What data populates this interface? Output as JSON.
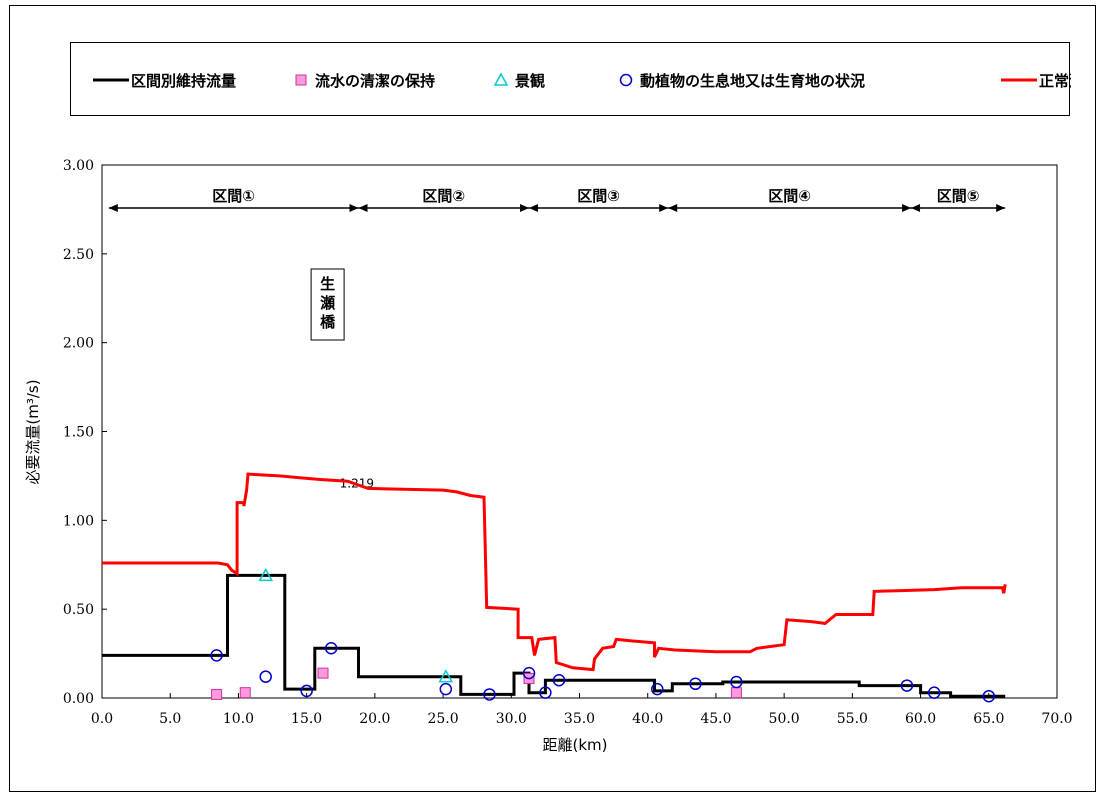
{
  "chart_data": {
    "type": "line",
    "xlabel": "距離(km)",
    "ylabel": "必要流量(m³/s)",
    "xlim": [
      0,
      70
    ],
    "ylim": [
      0,
      3.0
    ],
    "x_ticks": [
      "0.0",
      "5.0",
      "10.0",
      "15.0",
      "20.0",
      "25.0",
      "30.0",
      "35.0",
      "40.0",
      "45.0",
      "50.0",
      "55.0",
      "60.0",
      "65.0",
      "70.0"
    ],
    "y_ticks": [
      "0.00",
      "0.50",
      "1.00",
      "1.50",
      "2.00",
      "2.50",
      "3.00"
    ],
    "legend": [
      {
        "name": "区間別維持流量",
        "symbol": "line",
        "color": "#000000"
      },
      {
        "name": "流水の清潔の保持",
        "symbol": "square",
        "color": "#ff66cc"
      },
      {
        "name": "景観",
        "symbol": "triangle",
        "color": "#00cccc"
      },
      {
        "name": "動植物の生息地又は生育地の状況",
        "symbol": "circle",
        "color": "#0000cc"
      },
      {
        "name": "正常流量",
        "symbol": "line",
        "color": "#ff0000"
      }
    ],
    "sections": [
      {
        "label": "区間①",
        "from": 0.5,
        "to": 18.8
      },
      {
        "label": "区間②",
        "from": 18.8,
        "to": 31.3
      },
      {
        "label": "区間③",
        "from": 31.3,
        "to": 41.5
      },
      {
        "label": "区間④",
        "from": 41.5,
        "to": 59.3
      },
      {
        "label": "区間⑤",
        "from": 59.3,
        "to": 66.2
      }
    ],
    "annotation_box": {
      "text": [
        "生",
        "瀬",
        "橋"
      ],
      "x": 16.5
    },
    "annotation_value": {
      "text": "1.219",
      "x": 17.2,
      "y": 1.219
    },
    "series": [
      {
        "name": "区間別維持流量",
        "color": "#000000",
        "step": true,
        "points": [
          [
            0,
            0.24
          ],
          [
            9.2,
            0.24
          ],
          [
            9.2,
            0.69
          ],
          [
            13.4,
            0.69
          ],
          [
            13.4,
            0.05
          ],
          [
            15.6,
            0.05
          ],
          [
            15.6,
            0.28
          ],
          [
            18.8,
            0.28
          ],
          [
            18.8,
            0.12
          ],
          [
            26.3,
            0.12
          ],
          [
            26.3,
            0.02
          ],
          [
            30.2,
            0.02
          ],
          [
            30.2,
            0.14
          ],
          [
            31.3,
            0.14
          ],
          [
            31.3,
            0.03
          ],
          [
            32.5,
            0.03
          ],
          [
            32.5,
            0.1
          ],
          [
            40.5,
            0.1
          ],
          [
            40.5,
            0.04
          ],
          [
            41.8,
            0.04
          ],
          [
            41.8,
            0.08
          ],
          [
            45.5,
            0.08
          ],
          [
            45.5,
            0.09
          ],
          [
            55.5,
            0.09
          ],
          [
            55.5,
            0.07
          ],
          [
            60.0,
            0.07
          ],
          [
            60.0,
            0.03
          ],
          [
            62.2,
            0.03
          ],
          [
            62.2,
            0.01
          ],
          [
            66.2,
            0.01
          ]
        ]
      },
      {
        "name": "正常流量",
        "color": "#ff0000",
        "step": false,
        "points": [
          [
            0,
            0.76
          ],
          [
            8.5,
            0.76
          ],
          [
            9.2,
            0.75
          ],
          [
            9.5,
            0.72
          ],
          [
            9.9,
            0.7
          ],
          [
            9.9,
            1.1
          ],
          [
            10.4,
            1.1
          ],
          [
            10.4,
            1.08
          ],
          [
            10.6,
            1.17
          ],
          [
            10.7,
            1.26
          ],
          [
            13.0,
            1.25
          ],
          [
            14.5,
            1.24
          ],
          [
            16.0,
            1.23
          ],
          [
            18.0,
            1.22
          ],
          [
            19.5,
            1.18
          ],
          [
            25.0,
            1.17
          ],
          [
            26.0,
            1.16
          ],
          [
            27.0,
            1.14
          ],
          [
            28.0,
            1.13
          ],
          [
            28.2,
            0.51
          ],
          [
            30.5,
            0.5
          ],
          [
            30.5,
            0.34
          ],
          [
            31.5,
            0.34
          ],
          [
            31.7,
            0.24
          ],
          [
            32.0,
            0.33
          ],
          [
            33.2,
            0.34
          ],
          [
            33.3,
            0.2
          ],
          [
            34.5,
            0.17
          ],
          [
            36.0,
            0.16
          ],
          [
            36.1,
            0.22
          ],
          [
            36.7,
            0.28
          ],
          [
            37.5,
            0.29
          ],
          [
            37.7,
            0.33
          ],
          [
            39.0,
            0.32
          ],
          [
            40.5,
            0.31
          ],
          [
            40.5,
            0.23
          ],
          [
            40.8,
            0.28
          ],
          [
            42.0,
            0.27
          ],
          [
            45.0,
            0.26
          ],
          [
            47.5,
            0.26
          ],
          [
            48.0,
            0.28
          ],
          [
            50.0,
            0.3
          ],
          [
            50.2,
            0.44
          ],
          [
            52.0,
            0.43
          ],
          [
            53.0,
            0.42
          ],
          [
            53.8,
            0.47
          ],
          [
            56.5,
            0.47
          ],
          [
            56.6,
            0.6
          ],
          [
            61.0,
            0.61
          ],
          [
            63.0,
            0.62
          ],
          [
            66.0,
            0.62
          ],
          [
            66.1,
            0.59
          ],
          [
            66.2,
            0.64
          ]
        ]
      }
    ],
    "markers": {
      "circles": [
        [
          8.4,
          0.24
        ],
        [
          12.0,
          0.12
        ],
        [
          15.0,
          0.04
        ],
        [
          16.8,
          0.28
        ],
        [
          25.2,
          0.05
        ],
        [
          28.4,
          0.02
        ],
        [
          31.3,
          0.14
        ],
        [
          32.5,
          0.03
        ],
        [
          33.5,
          0.1
        ],
        [
          40.7,
          0.05
        ],
        [
          43.5,
          0.08
        ],
        [
          46.5,
          0.09
        ],
        [
          59.0,
          0.07
        ],
        [
          61.0,
          0.03
        ],
        [
          65.0,
          0.01
        ]
      ],
      "squares": [
        [
          8.4,
          0.02
        ],
        [
          10.5,
          0.03
        ],
        [
          16.2,
          0.14
        ],
        [
          31.3,
          0.11
        ],
        [
          46.5,
          0.03
        ]
      ],
      "triangles": [
        [
          12.0,
          0.69
        ],
        [
          25.2,
          0.12
        ]
      ]
    }
  }
}
